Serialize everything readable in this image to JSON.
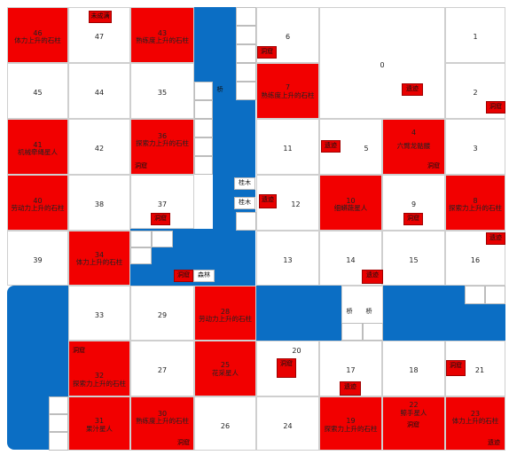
{
  "board": {
    "tiles": [
      {
        "num": "46",
        "name": "体力上升的石柱",
        "style": "red"
      },
      {
        "num": "47",
        "name": "",
        "style": "white"
      },
      {
        "num": "43",
        "name": "熟练度上升的石柱",
        "style": "red"
      },
      {
        "num": "6",
        "name": "",
        "style": "white"
      },
      {
        "num": "0",
        "name": "",
        "style": "white"
      },
      {
        "num": "1",
        "name": "",
        "style": "white"
      },
      {
        "num": "45",
        "name": "",
        "style": "white"
      },
      {
        "num": "44",
        "name": "",
        "style": "white"
      },
      {
        "num": "35",
        "name": "",
        "style": "white"
      },
      {
        "num": "7",
        "name": "熟练度上升的石柱",
        "style": "red"
      },
      {
        "num": "2",
        "name": "",
        "style": "white"
      },
      {
        "num": "41",
        "name": "机械牵绳星人",
        "style": "red"
      },
      {
        "num": "42",
        "name": "",
        "style": "white"
      },
      {
        "num": "36",
        "name": "探索力上升的石柱",
        "style": "red"
      },
      {
        "num": "11",
        "name": "",
        "style": "white"
      },
      {
        "num": "5",
        "name": "",
        "style": "white"
      },
      {
        "num": "4",
        "name": "六臂龙骷髅",
        "style": "red"
      },
      {
        "num": "3",
        "name": "",
        "style": "white"
      },
      {
        "num": "40",
        "name": "劳动力上升的石柱",
        "style": "red"
      },
      {
        "num": "38",
        "name": "",
        "style": "white"
      },
      {
        "num": "37",
        "name": "",
        "style": "white"
      },
      {
        "num": "12",
        "name": "",
        "style": "white"
      },
      {
        "num": "10",
        "name": "细蟒蔬星人",
        "style": "red"
      },
      {
        "num": "9",
        "name": "",
        "style": "white"
      },
      {
        "num": "8",
        "name": "探索力上升的石柱",
        "style": "red"
      },
      {
        "num": "39",
        "name": "",
        "style": "white"
      },
      {
        "num": "34",
        "name": "体力上升的石柱",
        "style": "red"
      },
      {
        "num": "13",
        "name": "",
        "style": "white"
      },
      {
        "num": "14",
        "name": "",
        "style": "white"
      },
      {
        "num": "15",
        "name": "",
        "style": "white"
      },
      {
        "num": "16",
        "name": "",
        "style": "white"
      },
      {
        "num": "33",
        "name": "",
        "style": "white"
      },
      {
        "num": "29",
        "name": "",
        "style": "white"
      },
      {
        "num": "28",
        "name": "劳动力上升的石柱",
        "style": "red"
      },
      {
        "num": "32",
        "name": "探索力上升的石柱",
        "style": "red"
      },
      {
        "num": "27",
        "name": "",
        "style": "white"
      },
      {
        "num": "25",
        "name": "花采星人",
        "style": "red"
      },
      {
        "num": "20",
        "name": "",
        "style": "white"
      },
      {
        "num": "17",
        "name": "",
        "style": "white"
      },
      {
        "num": "18",
        "name": "",
        "style": "white"
      },
      {
        "num": "21",
        "name": "",
        "style": "white"
      },
      {
        "num": "31",
        "name": "果汁星人",
        "style": "red"
      },
      {
        "num": "30",
        "name": "熟练度上升的石柱",
        "style": "red"
      },
      {
        "num": "26",
        "name": "",
        "style": "white"
      },
      {
        "num": "24",
        "name": "",
        "style": "white"
      },
      {
        "num": "19",
        "name": "探索力上升的石柱",
        "style": "red"
      },
      {
        "num": "22",
        "name": "鲸手星人",
        "style": "red"
      },
      {
        "num": "23",
        "name": "体力上升的石柱",
        "style": "red"
      }
    ],
    "labels": {
      "cave": "洞窟",
      "relic": "遗迹",
      "treasure": "未成满",
      "bridge": "桥",
      "pillar_wood": "桂木",
      "forest": "森林"
    },
    "colors": {
      "water": "#0b6ec4",
      "red": "#f20000",
      "grid": "#cfcfcf"
    }
  }
}
